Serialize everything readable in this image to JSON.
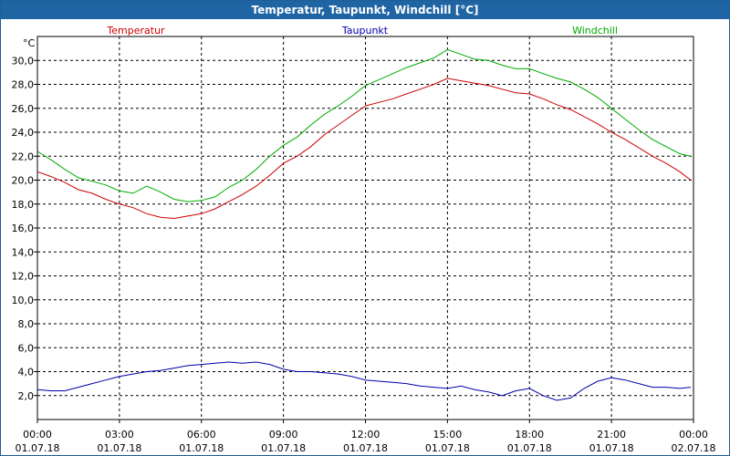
{
  "window": {
    "title": "Temperatur, Taupunkt, Windchill [°C]"
  },
  "chart_data": {
    "type": "line",
    "y_unit": "°C",
    "ylim": [
      0,
      32
    ],
    "yticks": [
      "2,0",
      "4,0",
      "6,0",
      "8,0",
      "10,0",
      "12,0",
      "14,0",
      "16,0",
      "18,0",
      "20,0",
      "22,0",
      "24,0",
      "26,0",
      "28,0",
      "30,0"
    ],
    "ytick_values": [
      2,
      4,
      6,
      8,
      10,
      12,
      14,
      16,
      18,
      20,
      22,
      24,
      26,
      28,
      30
    ],
    "xlim": [
      0,
      24
    ],
    "xticks": [
      {
        "time": "00:00",
        "date": "01.07.18",
        "h": 0
      },
      {
        "time": "03:00",
        "date": "01.07.18",
        "h": 3
      },
      {
        "time": "06:00",
        "date": "01.07.18",
        "h": 6
      },
      {
        "time": "09:00",
        "date": "01.07.18",
        "h": 9
      },
      {
        "time": "12:00",
        "date": "01.07.18",
        "h": 12
      },
      {
        "time": "15:00",
        "date": "01.07.18",
        "h": 15
      },
      {
        "time": "18:00",
        "date": "01.07.18",
        "h": 18
      },
      {
        "time": "21:00",
        "date": "01.07.18",
        "h": 21
      },
      {
        "time": "00:00",
        "date": "02.07.18",
        "h": 24
      }
    ],
    "grid": true,
    "legend_placement": "top",
    "series": [
      {
        "name": "Temperatur",
        "color": "#cc0000",
        "x": [
          0,
          0.5,
          1,
          1.5,
          2,
          2.5,
          3,
          3.5,
          4,
          4.5,
          5,
          5.5,
          6,
          6.5,
          7,
          7.5,
          8,
          8.5,
          9,
          9.5,
          10,
          10.5,
          11,
          11.5,
          12,
          12.5,
          13,
          13.5,
          14,
          14.5,
          15,
          15.5,
          16,
          16.5,
          17,
          17.5,
          18,
          18.5,
          19,
          19.5,
          20,
          20.5,
          21,
          21.5,
          22,
          22.5,
          23,
          23.5,
          23.9
        ],
        "y": [
          20.7,
          20.3,
          19.8,
          19.2,
          18.9,
          18.4,
          18.0,
          17.7,
          17.2,
          16.9,
          16.8,
          17.0,
          17.2,
          17.6,
          18.2,
          18.8,
          19.5,
          20.4,
          21.4,
          22.0,
          22.8,
          23.8,
          24.6,
          25.4,
          26.2,
          26.5,
          26.8,
          27.2,
          27.6,
          28.0,
          28.5,
          28.3,
          28.1,
          27.9,
          27.6,
          27.3,
          27.2,
          26.8,
          26.3,
          25.9,
          25.3,
          24.7,
          24.0,
          23.4,
          22.7,
          22.0,
          21.4,
          20.7,
          20.0
        ]
      },
      {
        "name": "Taupunkt",
        "color": "#0000aa",
        "x": [
          0,
          0.5,
          1,
          1.5,
          2,
          2.5,
          3,
          3.5,
          4,
          4.5,
          5,
          5.5,
          6,
          6.5,
          7,
          7.5,
          8,
          8.5,
          9,
          9.5,
          10,
          10.5,
          11,
          11.5,
          12,
          12.5,
          13,
          13.5,
          14,
          14.5,
          15,
          15.5,
          16,
          16.5,
          17,
          17.5,
          18,
          18.5,
          19,
          19.5,
          20,
          20.5,
          21,
          21.5,
          22,
          22.5,
          23,
          23.5,
          23.9
        ],
        "y": [
          2.5,
          2.4,
          2.4,
          2.7,
          3.0,
          3.3,
          3.6,
          3.8,
          4.0,
          4.1,
          4.3,
          4.5,
          4.6,
          4.7,
          4.8,
          4.7,
          4.8,
          4.6,
          4.2,
          4.0,
          4.0,
          3.9,
          3.8,
          3.6,
          3.3,
          3.2,
          3.1,
          3.0,
          2.8,
          2.7,
          2.6,
          2.8,
          2.5,
          2.3,
          2.0,
          2.4,
          2.6,
          2.0,
          1.6,
          1.8,
          2.6,
          3.2,
          3.5,
          3.3,
          3.0,
          2.7,
          2.7,
          2.6,
          2.7
        ]
      },
      {
        "name": "Windchill",
        "color": "#00aa00",
        "x": [
          0,
          0.5,
          1,
          1.5,
          2,
          2.5,
          3,
          3.5,
          4,
          4.5,
          5,
          5.5,
          6,
          6.5,
          7,
          7.5,
          8,
          8.5,
          9,
          9.5,
          10,
          10.5,
          11,
          11.5,
          12,
          12.5,
          13,
          13.5,
          14,
          14.5,
          15,
          15.5,
          16,
          16.5,
          17,
          17.5,
          18,
          18.5,
          19,
          19.5,
          20,
          20.5,
          21,
          21.5,
          22,
          22.5,
          23,
          23.5,
          23.9
        ],
        "y": [
          22.4,
          21.7,
          20.9,
          20.2,
          19.9,
          19.6,
          19.1,
          18.9,
          19.5,
          19.0,
          18.4,
          18.2,
          18.3,
          18.6,
          19.4,
          20.0,
          20.9,
          22.0,
          22.9,
          23.6,
          24.6,
          25.5,
          26.2,
          27.0,
          27.9,
          28.4,
          28.9,
          29.4,
          29.8,
          30.2,
          30.9,
          30.5,
          30.1,
          30.0,
          29.6,
          29.3,
          29.3,
          28.9,
          28.5,
          28.2,
          27.6,
          26.9,
          26.0,
          25.1,
          24.2,
          23.4,
          22.8,
          22.2,
          22.0
        ]
      }
    ]
  }
}
